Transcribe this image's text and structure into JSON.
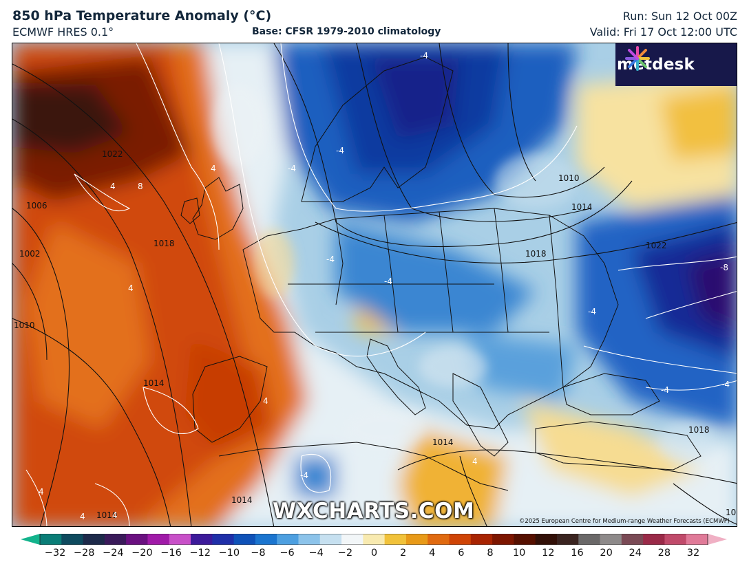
{
  "header": {
    "title": "850 hPa Temperature Anomaly (°C)",
    "model": "ECMWF HRES 0.1°",
    "base": "Base: CFSR 1979-2010 climatology",
    "run": "Run: Sun 12 Oct 00Z",
    "valid": "Valid: Fri 17 Oct 12:00 UTC"
  },
  "map": {
    "brand": "metdesk",
    "watermark": "WXCHARTS.COM",
    "copyright": "©2025 European Centre for Medium-range Weather Forecasts (ECMWF)",
    "isobar_labels": [
      "1006",
      "1002",
      "1010",
      "1014",
      "1018",
      "1022",
      "1010",
      "1014",
      "1018",
      "1022",
      "1014",
      "1018",
      "1014",
      "1010",
      "1014"
    ],
    "anomaly_labels": [
      "-4",
      "-4",
      "-4",
      "-4",
      "-4",
      "-8",
      "-4",
      "-4",
      "-4",
      "4",
      "4",
      "8",
      "4",
      "4",
      "4",
      "4",
      "4",
      "4",
      "-4"
    ]
  },
  "colorbar": {
    "ticks": [
      "−32",
      "−28",
      "−24",
      "−20",
      "−16",
      "−12",
      "−10",
      "−8",
      "−6",
      "−4",
      "−2",
      "0",
      "2",
      "4",
      "6",
      "8",
      "10",
      "12",
      "16",
      "20",
      "24",
      "28",
      "32"
    ],
    "colors": [
      "#13b38c",
      "#0a7d77",
      "#0e4a5e",
      "#1d2a4a",
      "#3a1a5a",
      "#6a1080",
      "#a01aa8",
      "#c850c8",
      "#3c1a9a",
      "#1f2fa8",
      "#0f52b8",
      "#1b75cf",
      "#4d9fe0",
      "#8cc3ea",
      "#c6e0f0",
      "#f2f6f8",
      "#f8eab0",
      "#f1c23a",
      "#e89a18",
      "#e06a10",
      "#cf4406",
      "#a82402",
      "#7d1600",
      "#561000",
      "#321008",
      "#3a2420",
      "#6a6868",
      "#8e8a8a",
      "#7a4a55",
      "#9a2a48",
      "#c04a6a",
      "#e07a98",
      "#f0b0c4"
    ]
  }
}
